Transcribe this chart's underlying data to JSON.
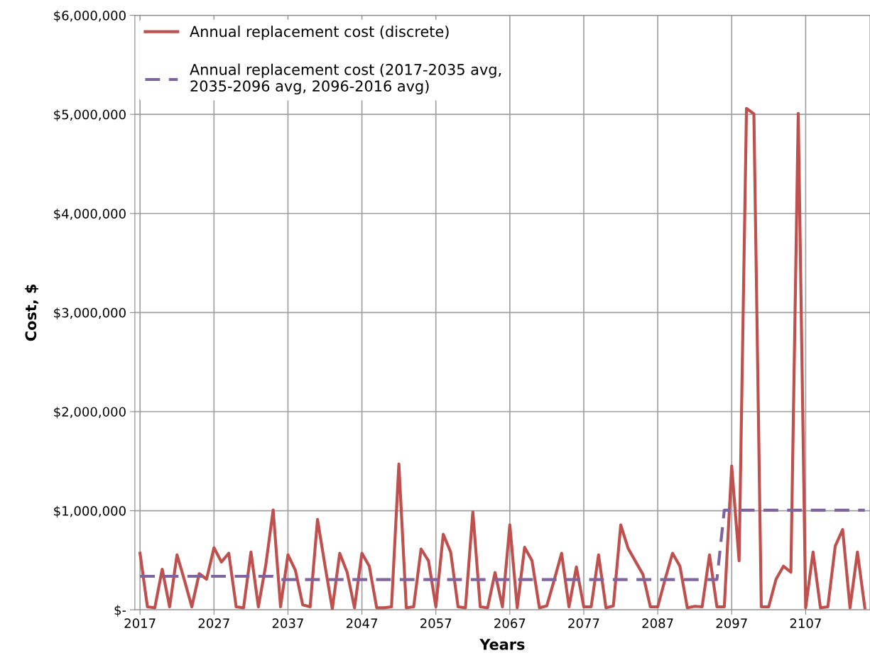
{
  "chart_data": {
    "type": "line",
    "xlabel": "Years",
    "ylabel": "Cost, $",
    "x": [
      2017,
      2018,
      2019,
      2020,
      2021,
      2022,
      2023,
      2024,
      2025,
      2026,
      2027,
      2028,
      2029,
      2030,
      2031,
      2032,
      2033,
      2034,
      2035,
      2036,
      2037,
      2038,
      2039,
      2040,
      2041,
      2042,
      2043,
      2044,
      2045,
      2046,
      2047,
      2048,
      2049,
      2050,
      2051,
      2052,
      2053,
      2054,
      2055,
      2056,
      2057,
      2058,
      2059,
      2060,
      2061,
      2062,
      2063,
      2064,
      2065,
      2066,
      2067,
      2068,
      2069,
      2070,
      2071,
      2072,
      2073,
      2074,
      2075,
      2076,
      2077,
      2078,
      2079,
      2080,
      2081,
      2082,
      2083,
      2084,
      2085,
      2086,
      2087,
      2088,
      2089,
      2090,
      2091,
      2092,
      2093,
      2094,
      2095,
      2096,
      2097,
      2098,
      2099,
      2100,
      2101,
      2102,
      2103,
      2104,
      2105,
      2106,
      2107,
      2108,
      2109,
      2110,
      2111,
      2112,
      2113,
      2114,
      2115
    ],
    "series": [
      {
        "name": "Annual replacement cost (discrete)",
        "color": "#c0504d",
        "line_style": "solid",
        "values": [
          571000,
          30000,
          20000,
          410000,
          30000,
          555000,
          300000,
          30000,
          365000,
          310000,
          626000,
          483000,
          571000,
          30000,
          20000,
          583000,
          30000,
          450000,
          1007000,
          30000,
          555000,
          400000,
          50000,
          30000,
          912000,
          450000,
          10000,
          571000,
          380000,
          20000,
          571000,
          440000,
          20000,
          20000,
          30000,
          1471000,
          20000,
          30000,
          614000,
          495000,
          30000,
          762000,
          583000,
          30000,
          20000,
          988000,
          30000,
          20000,
          376000,
          30000,
          857000,
          20000,
          631000,
          495000,
          20000,
          40000,
          300000,
          571000,
          30000,
          433000,
          30000,
          30000,
          555000,
          20000,
          40000,
          857000,
          619000,
          488000,
          357000,
          30000,
          30000,
          310000,
          571000,
          440000,
          20000,
          36000,
          30000,
          555000,
          30000,
          30000,
          1452000,
          495000,
          5060000,
          5006000,
          30000,
          30000,
          310000,
          440000,
          380000,
          5010000,
          20000,
          583000,
          20000,
          30000,
          643000,
          810000,
          20000,
          583000,
          20000
        ]
      },
      {
        "name": "Annual replacement cost (2017-2035 avg,\n2035-2096 avg, 2096-2016 avg)",
        "color": "#8064a2",
        "line_style": "dashed",
        "x": [
          2017,
          2035,
          2036,
          2095,
          2096,
          2115
        ],
        "values": [
          338000,
          338000,
          305000,
          305000,
          1005000,
          1005000
        ]
      }
    ],
    "xlim": [
      2016.3,
      2115.7
    ],
    "xticks": [
      2017,
      2027,
      2037,
      2047,
      2057,
      2067,
      2077,
      2087,
      2097,
      2107
    ],
    "ylim": [
      0,
      6000000
    ],
    "yticks": [
      {
        "value": 0,
        "label": "$-"
      },
      {
        "value": 1000000,
        "label": "$1,000,000"
      },
      {
        "value": 2000000,
        "label": "$2,000,000"
      },
      {
        "value": 3000000,
        "label": "$3,000,000"
      },
      {
        "value": 4000000,
        "label": "$4,000,000"
      },
      {
        "value": 5000000,
        "label": "$5,000,000"
      },
      {
        "value": 6000000,
        "label": "$6,000,000"
      }
    ],
    "grid": true,
    "legend": "top left",
    "marker": "none"
  }
}
